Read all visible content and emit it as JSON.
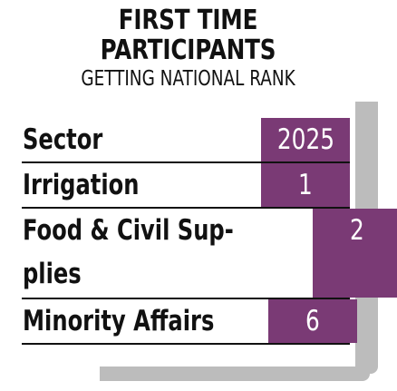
{
  "header": {
    "title_line1": "FIRST TIME",
    "title_line2": "PARTICIPANTS",
    "subtitle": "GETTING NATIONAL RANK"
  },
  "table": {
    "column_headers": [
      "Sector",
      "2025"
    ],
    "rows": [
      {
        "sector": "Irrigation",
        "rank": "1"
      },
      {
        "sector_line1": "Food & Civil Sup-",
        "sector_line2": "plies",
        "rank": "2"
      },
      {
        "sector": "Minority Affairs",
        "rank": "6"
      }
    ]
  },
  "colors": {
    "accent": "#7a3a75",
    "shadow": "#bcbcbc",
    "text": "#111111"
  }
}
